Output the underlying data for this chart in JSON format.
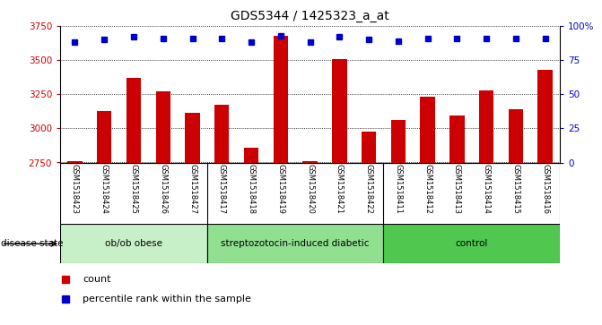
{
  "title": "GDS5344 / 1425323_a_at",
  "samples": [
    "GSM1518423",
    "GSM1518424",
    "GSM1518425",
    "GSM1518426",
    "GSM1518427",
    "GSM1518417",
    "GSM1518418",
    "GSM1518419",
    "GSM1518420",
    "GSM1518421",
    "GSM1518422",
    "GSM1518411",
    "GSM1518412",
    "GSM1518413",
    "GSM1518414",
    "GSM1518415",
    "GSM1518416"
  ],
  "counts": [
    2757,
    3130,
    3370,
    3270,
    3115,
    3175,
    2855,
    3680,
    2762,
    3510,
    2975,
    3060,
    3230,
    3095,
    3275,
    3140,
    3430
  ],
  "percentile_ranks": [
    88,
    90,
    92,
    91,
    91,
    91,
    88,
    93,
    88,
    92,
    90,
    89,
    91,
    91,
    91,
    91,
    91
  ],
  "groups": [
    {
      "label": "ob/ob obese",
      "start": 0,
      "end": 5,
      "color": "#c8f0c8"
    },
    {
      "label": "streptozotocin-induced diabetic",
      "start": 5,
      "end": 11,
      "color": "#90e090"
    },
    {
      "label": "control",
      "start": 11,
      "end": 17,
      "color": "#50c850"
    }
  ],
  "bar_color": "#cc0000",
  "dot_color": "#0000cc",
  "ylim_left": [
    2750,
    3750
  ],
  "ylim_right": [
    0,
    100
  ],
  "yticks_left": [
    2750,
    3000,
    3250,
    3500,
    3750
  ],
  "yticks_right": [
    0,
    25,
    50,
    75,
    100
  ],
  "label_bg_color": "#d8d8d8",
  "title_fontsize": 10,
  "legend_items": [
    {
      "label": "count",
      "color": "#cc0000",
      "marker": "s"
    },
    {
      "label": "percentile rank within the sample",
      "color": "#0000cc",
      "marker": "s"
    }
  ]
}
